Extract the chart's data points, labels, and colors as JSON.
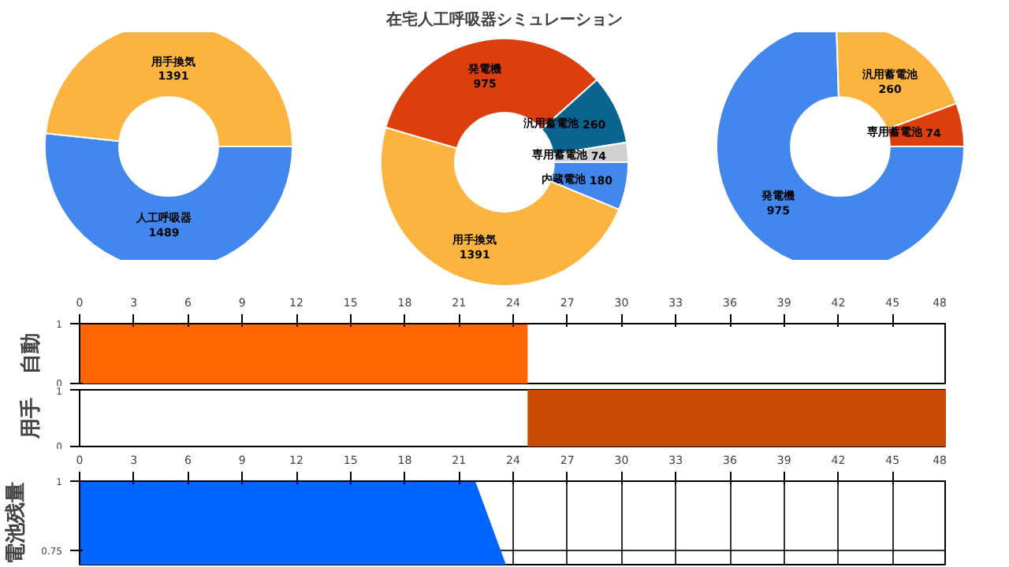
{
  "chart_data": [
    {
      "type": "donut",
      "categories": [
        "人工呼吸器",
        "用手換気"
      ],
      "values": [
        1489,
        1391
      ],
      "colors": [
        "#4287ee",
        "#fbb440"
      ],
      "data_labels": true
    },
    {
      "type": "donut",
      "title": "在宅人工呼吸器シミュレーション",
      "categories": [
        "内蔵電池",
        "用手換気",
        "発電機",
        "汎用蓄電池",
        "専用蓄電池"
      ],
      "values": [
        180,
        1391,
        975,
        260,
        74
      ],
      "colors": [
        "#4287ee",
        "#fbb440",
        "#dc3f0c",
        "#0b6390",
        "#d0d0d0"
      ],
      "data_labels": true
    },
    {
      "type": "donut",
      "categories": [
        "発電機",
        "汎用蓄電池",
        "専用蓄電池"
      ],
      "values": [
        975,
        260,
        74
      ],
      "colors": [
        "#4287ee",
        "#fbb440",
        "#dc3f0c"
      ],
      "data_labels": true
    },
    {
      "type": "area",
      "ylabel": "自動",
      "x": [
        0,
        24.8,
        24.8,
        48
      ],
      "values": [
        1,
        1,
        0,
        0
      ],
      "color": "#ff6600",
      "xlim": [
        0,
        48
      ],
      "xticks": [
        0,
        3,
        6,
        9,
        12,
        15,
        18,
        21,
        24,
        27,
        30,
        33,
        36,
        39,
        42,
        45,
        48
      ],
      "ylim": [
        0,
        1
      ],
      "yticks": [
        0,
        1
      ],
      "grid": false
    },
    {
      "type": "area",
      "ylabel": "用手",
      "x": [
        0,
        24.8,
        24.8,
        48
      ],
      "values": [
        0,
        0,
        1,
        1
      ],
      "color": "#c94a00",
      "xlim": [
        0,
        48
      ],
      "ylim": [
        0,
        1
      ],
      "yticks": [
        0,
        1
      ],
      "tick_labels": "y",
      "grid": false
    },
    {
      "type": "area",
      "ylabel": "電池残量",
      "x": [
        0,
        21.9,
        23.6
      ],
      "values": [
        1,
        1,
        0.7
      ],
      "color": "#0066ff",
      "xlim": [
        0,
        48
      ],
      "xticks": [
        0,
        3,
        6,
        9,
        12,
        15,
        18,
        21,
        24,
        27,
        30,
        33,
        36,
        39,
        42,
        45,
        48
      ],
      "ylim": [
        0.7,
        1
      ],
      "yticks": [
        0.75,
        1
      ],
      "grid": true
    }
  ]
}
